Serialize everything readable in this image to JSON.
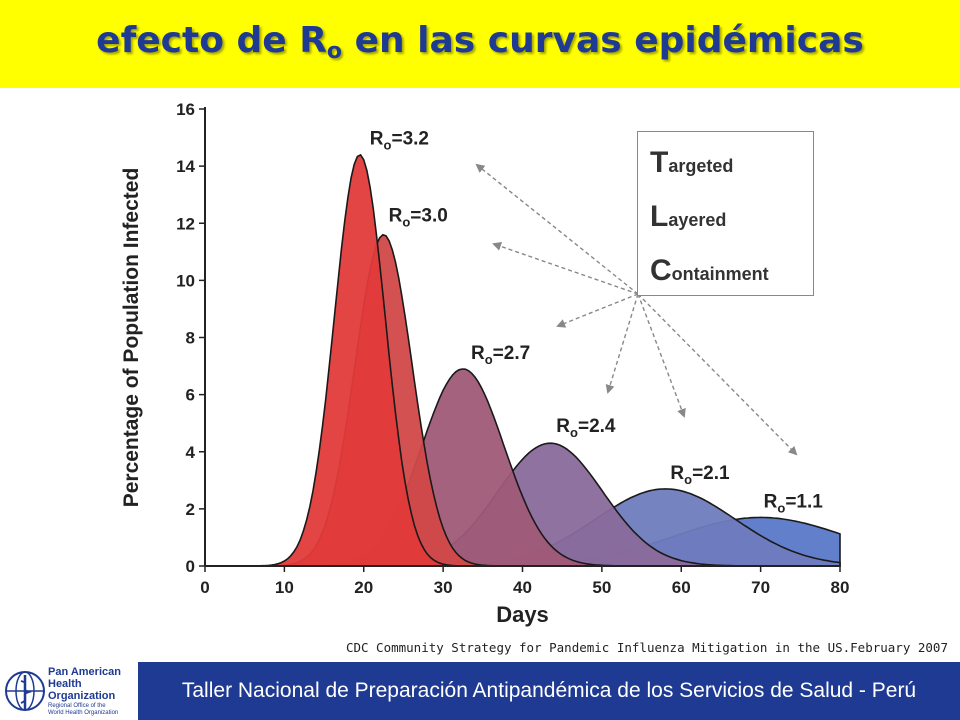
{
  "title": {
    "before_sub": "efecto de R",
    "sub": "o",
    "after_sub": " en las curvas epidémicas"
  },
  "legend_box": {
    "items": [
      {
        "cap": "T",
        "rest": "argeted"
      },
      {
        "cap": "L",
        "rest": "ayered"
      },
      {
        "cap": "C",
        "rest": "ontainment"
      }
    ]
  },
  "source_note": "CDC Community Strategy for Pandemic Influenza Mitigation in the US.February 2007",
  "footer": {
    "text": "Taller Nacional de Preparación Antipandémica de los Servicios de Salud - Perú",
    "logo": {
      "line1": "Pan American",
      "line2": "Health",
      "line3": "Organization",
      "sub1": "Regional Office of the",
      "sub2": "World Health Organization"
    }
  },
  "colors": {
    "title_bg": "#ffff00",
    "title_text": "#1f3a93",
    "footer_bg": "#1f3a93",
    "footer_text": "#ffffff"
  },
  "chart_data": {
    "type": "area",
    "xlabel": "Days",
    "ylabel": "Percentage of Population Infected",
    "xlim": [
      0,
      80
    ],
    "ylim": [
      0,
      16
    ],
    "xticks": [
      0,
      10,
      20,
      30,
      40,
      50,
      60,
      70,
      80
    ],
    "yticks": [
      0,
      2,
      4,
      6,
      8,
      10,
      12,
      14,
      16
    ],
    "series": [
      {
        "name": "Ro=3.2",
        "peak_day": 19.5,
        "peak_value": 14.4,
        "color": "#e23a3a"
      },
      {
        "name": "Ro=3.0",
        "peak_day": 22.5,
        "peak_value": 11.6,
        "color": "#d24848"
      },
      {
        "name": "Ro=2.7",
        "peak_day": 32.5,
        "peak_value": 6.9,
        "color": "#a05a78"
      },
      {
        "name": "Ro=2.4",
        "peak_day": 43.5,
        "peak_value": 4.3,
        "color": "#8a6a9c"
      },
      {
        "name": "Ro=2.1",
        "peak_day": 58,
        "peak_value": 2.7,
        "color": "#6f7cbe"
      },
      {
        "name": "Ro=1.1",
        "peak_day": 70,
        "peak_value": 1.7,
        "color": "#5a78c8"
      }
    ]
  }
}
